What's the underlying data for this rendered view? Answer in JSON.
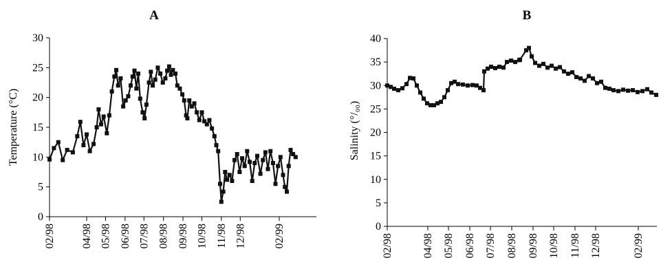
{
  "chart_data": [
    {
      "type": "line",
      "title": "A",
      "xlabel": "",
      "ylabel": "Temperature (°C)",
      "ylim": [
        0,
        30
      ],
      "yticks": [
        0,
        5,
        10,
        15,
        20,
        25,
        30
      ],
      "xlim": [
        "1998-02-01",
        "1999-04-01"
      ],
      "xticks": [
        {
          "label": "02/98",
          "date": "1998-02-01"
        },
        {
          "label": "04/98",
          "date": "1998-04-01"
        },
        {
          "label": "05/98",
          "date": "1998-05-01"
        },
        {
          "label": "06/98",
          "date": "1998-06-01"
        },
        {
          "label": "07/98",
          "date": "1998-07-01"
        },
        {
          "label": "08/98",
          "date": "1998-08-01"
        },
        {
          "label": "09/98",
          "date": "1998-09-01"
        },
        {
          "label": "10/98",
          "date": "1998-10-01"
        },
        {
          "label": "11/98",
          "date": "1998-11-01"
        },
        {
          "label": "12/98",
          "date": "1998-12-01"
        },
        {
          "label": "02/99",
          "date": "1999-02-01"
        }
      ],
      "grid": false,
      "marker": "square",
      "color": "#111111",
      "series": [
        {
          "points": [
            [
              "1998-02-01",
              9.6
            ],
            [
              "1998-02-08",
              11.5
            ],
            [
              "1998-02-15",
              12.5
            ],
            [
              "1998-02-22",
              9.5
            ],
            [
              "1998-03-01",
              11.2
            ],
            [
              "1998-03-10",
              10.8
            ],
            [
              "1998-03-17",
              13.5
            ],
            [
              "1998-03-22",
              15.9
            ],
            [
              "1998-03-27",
              12.0
            ],
            [
              "1998-04-01",
              13.8
            ],
            [
              "1998-04-06",
              11.0
            ],
            [
              "1998-04-12",
              12.2
            ],
            [
              "1998-04-17",
              15.0
            ],
            [
              "1998-04-20",
              18.0
            ],
            [
              "1998-04-24",
              15.5
            ],
            [
              "1998-04-28",
              16.8
            ],
            [
              "1998-05-03",
              14.0
            ],
            [
              "1998-05-07",
              17.0
            ],
            [
              "1998-05-11",
              21.0
            ],
            [
              "1998-05-15",
              23.5
            ],
            [
              "1998-05-18",
              24.6
            ],
            [
              "1998-05-21",
              22.0
            ],
            [
              "1998-05-25",
              23.2
            ],
            [
              "1998-05-29",
              18.5
            ],
            [
              "1998-06-02",
              19.5
            ],
            [
              "1998-06-06",
              20.2
            ],
            [
              "1998-06-10",
              22.0
            ],
            [
              "1998-06-13",
              23.5
            ],
            [
              "1998-06-16",
              24.5
            ],
            [
              "1998-06-19",
              21.5
            ],
            [
              "1998-06-22",
              24.0
            ],
            [
              "1998-06-25",
              19.8
            ],
            [
              "1998-06-29",
              17.5
            ],
            [
              "1998-07-02",
              16.5
            ],
            [
              "1998-07-05",
              18.8
            ],
            [
              "1998-07-09",
              22.5
            ],
            [
              "1998-07-12",
              24.3
            ],
            [
              "1998-07-15",
              22.0
            ],
            [
              "1998-07-19",
              23.0
            ],
            [
              "1998-07-23",
              25.0
            ],
            [
              "1998-07-27",
              24.0
            ],
            [
              "1998-07-31",
              22.5
            ],
            [
              "1998-08-04",
              23.2
            ],
            [
              "1998-08-07",
              24.5
            ],
            [
              "1998-08-10",
              25.2
            ],
            [
              "1998-08-13",
              23.8
            ],
            [
              "1998-08-16",
              24.6
            ],
            [
              "1998-08-20",
              24.0
            ],
            [
              "1998-08-23",
              22.0
            ],
            [
              "1998-08-27",
              21.5
            ],
            [
              "1998-08-31",
              20.5
            ],
            [
              "1998-09-03",
              19.5
            ],
            [
              "1998-09-06",
              17.0
            ],
            [
              "1998-09-08",
              16.5
            ],
            [
              "1998-09-11",
              19.5
            ],
            [
              "1998-09-15",
              18.5
            ],
            [
              "1998-09-19",
              19.0
            ],
            [
              "1998-09-23",
              17.5
            ],
            [
              "1998-09-27",
              16.2
            ],
            [
              "1998-10-01",
              17.5
            ],
            [
              "1998-10-05",
              16.0
            ],
            [
              "1998-10-09",
              15.5
            ],
            [
              "1998-10-13",
              16.2
            ],
            [
              "1998-10-17",
              14.8
            ],
            [
              "1998-10-21",
              13.5
            ],
            [
              "1998-10-24",
              12.0
            ],
            [
              "1998-10-27",
              11.0
            ],
            [
              "1998-10-30",
              5.5
            ],
            [
              "1998-11-01",
              2.5
            ],
            [
              "1998-11-04",
              4.2
            ],
            [
              "1998-11-07",
              7.5
            ],
            [
              "1998-11-10",
              6.2
            ],
            [
              "1998-11-14",
              7.0
            ],
            [
              "1998-11-18",
              6.0
            ],
            [
              "1998-11-22",
              9.5
            ],
            [
              "1998-11-26",
              10.5
            ],
            [
              "1998-11-30",
              7.5
            ],
            [
              "1998-12-04",
              9.8
            ],
            [
              "1998-12-08",
              8.5
            ],
            [
              "1998-12-12",
              11.0
            ],
            [
              "1998-12-16",
              9.2
            ],
            [
              "1998-12-20",
              6.0
            ],
            [
              "1998-12-24",
              9.0
            ],
            [
              "1998-12-28",
              10.2
            ],
            [
              "1999-01-02",
              7.2
            ],
            [
              "1999-01-06",
              9.5
            ],
            [
              "1999-01-10",
              10.8
            ],
            [
              "1999-01-14",
              8.0
            ],
            [
              "1999-01-18",
              11.0
            ],
            [
              "1999-01-22",
              9.0
            ],
            [
              "1999-01-26",
              5.5
            ],
            [
              "1999-01-30",
              8.5
            ],
            [
              "1999-02-03",
              10.0
            ],
            [
              "1999-02-07",
              7.0
            ],
            [
              "1999-02-10",
              5.0
            ],
            [
              "1999-02-13",
              4.2
            ],
            [
              "1999-02-16",
              8.5
            ],
            [
              "1999-02-19",
              11.2
            ],
            [
              "1999-02-23",
              10.5
            ],
            [
              "1999-02-27",
              10.0
            ]
          ]
        }
      ]
    },
    {
      "type": "line",
      "title": "B",
      "xlabel": "",
      "ylabel": "Salinity (°/₀₀)",
      "ylim": [
        0,
        40
      ],
      "yticks": [
        0,
        5,
        10,
        15,
        20,
        25,
        30,
        35,
        40
      ],
      "xlim": [
        "1998-02-01",
        "1999-02-28"
      ],
      "xticks": [
        {
          "label": "02/98",
          "date": "1998-02-01"
        },
        {
          "label": "04/98",
          "date": "1998-04-01"
        },
        {
          "label": "05/98",
          "date": "1998-05-01"
        },
        {
          "label": "06/98",
          "date": "1998-06-01"
        },
        {
          "label": "07/98",
          "date": "1998-07-01"
        },
        {
          "label": "08/98",
          "date": "1998-08-01"
        },
        {
          "label": "09/98",
          "date": "1998-09-01"
        },
        {
          "label": "10/98",
          "date": "1998-10-01"
        },
        {
          "label": "11/98",
          "date": "1998-11-01"
        },
        {
          "label": "12/98",
          "date": "1998-12-01"
        },
        {
          "label": "02/99",
          "date": "1999-02-01"
        }
      ],
      "grid": false,
      "marker": "square",
      "color": "#111111",
      "series": [
        {
          "points": [
            [
              "1998-02-01",
              30.0
            ],
            [
              "1998-02-06",
              29.7
            ],
            [
              "1998-02-11",
              29.3
            ],
            [
              "1998-02-17",
              29.0
            ],
            [
              "1998-02-23",
              29.4
            ],
            [
              "1998-03-01",
              30.3
            ],
            [
              "1998-03-06",
              31.6
            ],
            [
              "1998-03-11",
              31.5
            ],
            [
              "1998-03-16",
              30.0
            ],
            [
              "1998-03-21",
              28.5
            ],
            [
              "1998-03-26",
              27.2
            ],
            [
              "1998-03-31",
              26.2
            ],
            [
              "1998-04-05",
              25.8
            ],
            [
              "1998-04-10",
              25.8
            ],
            [
              "1998-04-15",
              26.2
            ],
            [
              "1998-04-20",
              26.5
            ],
            [
              "1998-04-25",
              27.5
            ],
            [
              "1998-04-30",
              29.0
            ],
            [
              "1998-05-05",
              30.5
            ],
            [
              "1998-05-10",
              30.8
            ],
            [
              "1998-05-15",
              30.3
            ],
            [
              "1998-05-22",
              30.2
            ],
            [
              "1998-05-29",
              30.0
            ],
            [
              "1998-06-05",
              30.1
            ],
            [
              "1998-06-11",
              30.0
            ],
            [
              "1998-06-16",
              29.5
            ],
            [
              "1998-06-21",
              29.0
            ],
            [
              "1998-06-22",
              33.0
            ],
            [
              "1998-06-27",
              33.6
            ],
            [
              "1998-07-02",
              34.0
            ],
            [
              "1998-07-08",
              33.7
            ],
            [
              "1998-07-14",
              34.0
            ],
            [
              "1998-07-20",
              33.8
            ],
            [
              "1998-07-25",
              35.0
            ],
            [
              "1998-07-31",
              35.3
            ],
            [
              "1998-08-06",
              35.0
            ],
            [
              "1998-08-12",
              35.4
            ],
            [
              "1998-08-13",
              35.5
            ],
            [
              "1998-08-22",
              37.5
            ],
            [
              "1998-08-26",
              38.0
            ],
            [
              "1998-08-30",
              36.2
            ],
            [
              "1998-09-04",
              34.8
            ],
            [
              "1998-09-10",
              34.2
            ],
            [
              "1998-09-16",
              34.6
            ],
            [
              "1998-09-22",
              33.8
            ],
            [
              "1998-09-28",
              34.2
            ],
            [
              "1998-10-04",
              33.6
            ],
            [
              "1998-10-10",
              33.9
            ],
            [
              "1998-10-16",
              33.0
            ],
            [
              "1998-10-22",
              32.5
            ],
            [
              "1998-10-28",
              32.8
            ],
            [
              "1998-11-03",
              31.8
            ],
            [
              "1998-11-09",
              31.5
            ],
            [
              "1998-11-15",
              31.0
            ],
            [
              "1998-11-21",
              32.0
            ],
            [
              "1998-11-27",
              31.5
            ],
            [
              "1998-12-03",
              30.5
            ],
            [
              "1998-12-09",
              30.8
            ],
            [
              "1998-12-15",
              29.5
            ],
            [
              "1998-12-21",
              29.3
            ],
            [
              "1998-12-27",
              29.0
            ],
            [
              "1999-01-03",
              28.8
            ],
            [
              "1999-01-10",
              29.1
            ],
            [
              "1999-01-17",
              28.9
            ],
            [
              "1999-01-24",
              29.0
            ],
            [
              "1999-01-31",
              28.6
            ],
            [
              "1999-02-07",
              28.8
            ],
            [
              "1999-02-14",
              29.2
            ],
            [
              "1999-02-20",
              28.5
            ],
            [
              "1999-02-27",
              28.0
            ]
          ]
        }
      ]
    }
  ]
}
